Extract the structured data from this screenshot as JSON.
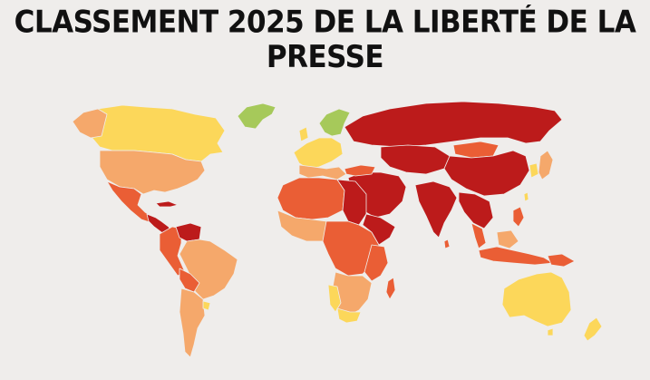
{
  "title": "CLASSEMENT 2025 DE LA LIBERTÉ DE LA PRESSE",
  "map_colors": {
    "background": "#efedeb",
    "good": "#a6c95a",
    "satisfactory": "#fcd75a",
    "problematic": "#f5a86b",
    "difficult": "#ea5e35",
    "very_serious": "#bc1b1b"
  }
}
